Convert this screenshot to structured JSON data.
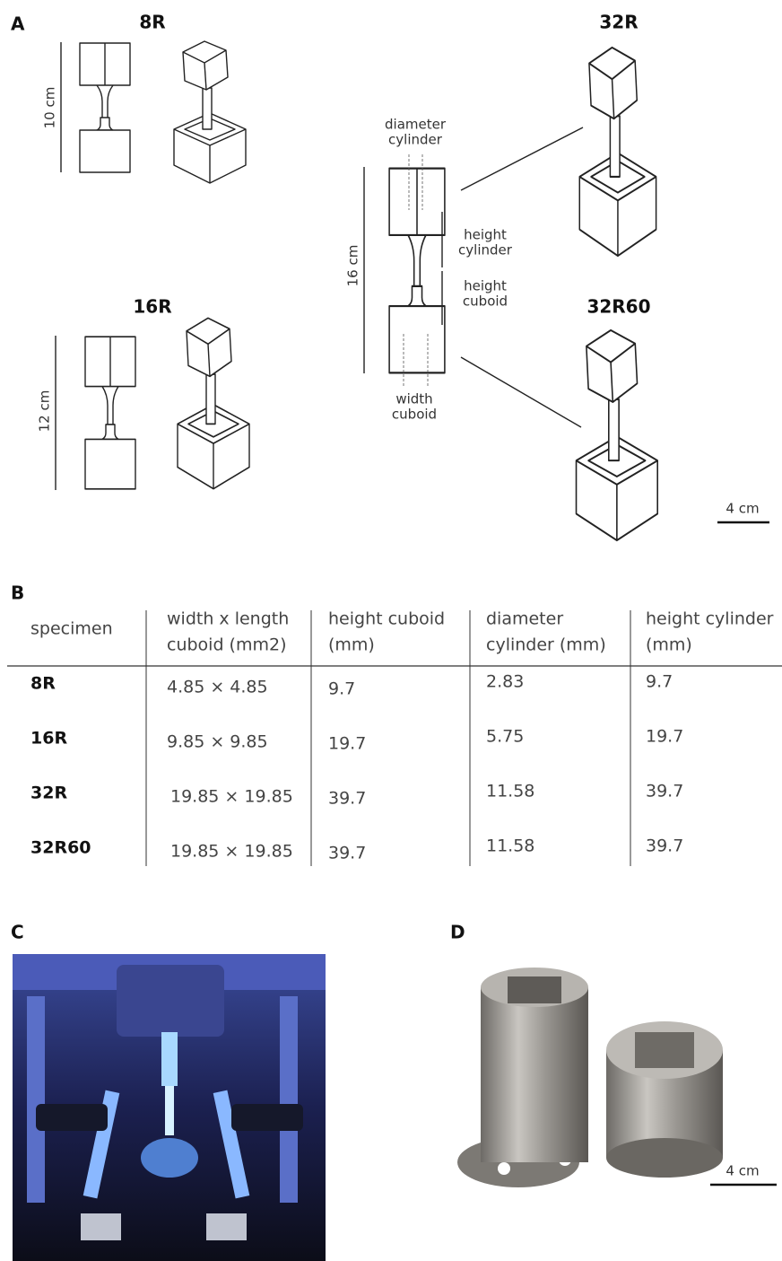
{
  "panel_labels": [
    "A",
    "B",
    "C",
    "D"
  ],
  "figure_a": {
    "specimens": [
      "8R",
      "16R",
      "32R",
      "32R60"
    ],
    "heights": [
      "10 cm",
      "12 cm",
      "16 cm"
    ],
    "dimension_labels": {
      "diameter_cylinder": [
        "diameter",
        "cylinder"
      ],
      "height_cylinder": [
        "height",
        "cylinder"
      ],
      "height_cuboid": [
        "height",
        "cuboid"
      ],
      "width_cuboid": [
        "width",
        "cuboid"
      ]
    },
    "scale_bar": "4 cm"
  },
  "table": {
    "header": [
      [
        "specimen"
      ],
      [
        "width x length",
        "cuboid (mm2)"
      ],
      [
        "height cuboid",
        "(mm)"
      ],
      [
        "diameter",
        "cylinder (mm)"
      ],
      [
        "height cylinder",
        "(mm)"
      ]
    ],
    "rows": [
      [
        "8R",
        "4.85 × 4.85",
        "9.7",
        "2.83",
        "9.7"
      ],
      [
        "16R",
        "9.85 × 9.85",
        "19.7",
        "5.75",
        "19.7"
      ],
      [
        "32R",
        "19.85 × 19.85",
        "39.7",
        "11.58",
        "39.7"
      ],
      [
        "32R60",
        "19.85 × 19.85",
        "39.7",
        "11.58",
        "39.7"
      ]
    ]
  },
  "figure_d": {
    "scale_bar": "4 cm"
  }
}
